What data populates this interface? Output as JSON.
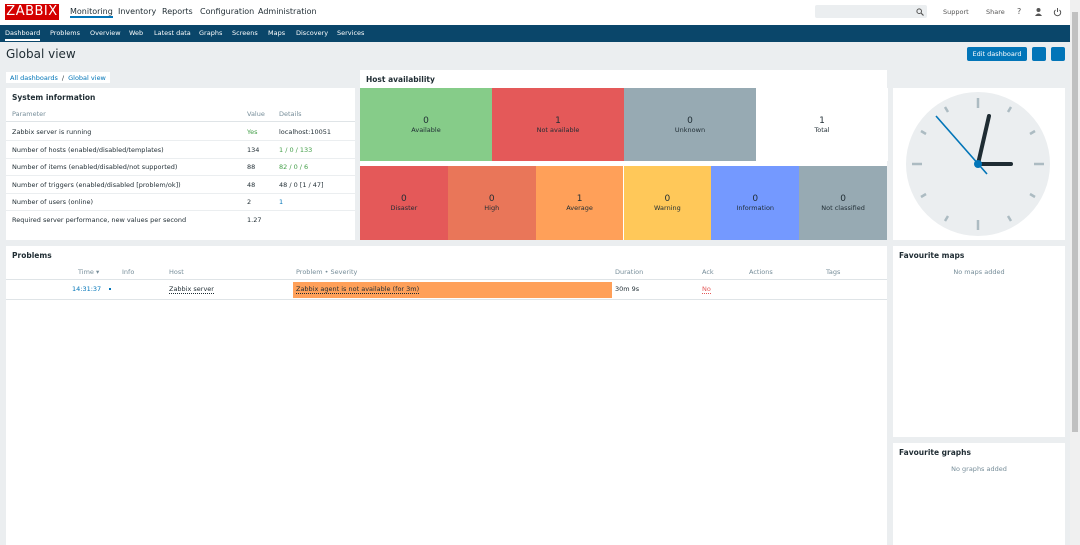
{
  "header": {
    "logo": "ZABBIX",
    "menu": [
      "Monitoring",
      "Inventory",
      "Reports",
      "Configuration",
      "Administration"
    ],
    "support": "Support",
    "share": "Share",
    "help": "?"
  },
  "nav": [
    "Dashboard",
    "Problems",
    "Overview",
    "Web",
    "Latest data",
    "Graphs",
    "Screens",
    "Maps",
    "Discovery",
    "Services"
  ],
  "page": {
    "title": "Global view",
    "edit_button": "Edit dashboard"
  },
  "breadcrumb": {
    "items": [
      "All dashboards",
      "Global view"
    ],
    "separator": "/"
  },
  "system_information": {
    "title": "System information",
    "columns": [
      "Parameter",
      "Value",
      "Details"
    ],
    "rows": [
      [
        "Zabbix server is running",
        "Yes",
        "localhost:10051"
      ],
      [
        "Number of hosts (enabled/disabled/templates)",
        "134",
        "1 / 0 / 133"
      ],
      [
        "Number of items (enabled/disabled/not supported)",
        "88",
        "82 / 0 / 6"
      ],
      [
        "Number of triggers (enabled/disabled [problem/ok])",
        "48",
        "48 / 0 [1 / 47]"
      ],
      [
        "Number of users (online)",
        "2",
        "1"
      ],
      [
        "Required server performance, new values per second",
        "1.27"
      ]
    ]
  },
  "host_availability": {
    "title": "Host availability",
    "hosts": [
      {
        "label": "Available",
        "count": 0,
        "color": "#86cc89"
      },
      {
        "label": "Not available",
        "count": 1,
        "color": "#e45959"
      },
      {
        "label": "Unknown",
        "count": 0,
        "color": "#97aab3"
      },
      {
        "label": "Total",
        "count": 1,
        "color": "#ffffff"
      }
    ],
    "severities": [
      {
        "label": "Disaster",
        "count": 0,
        "color": "#e45959"
      },
      {
        "label": "High",
        "count": 0,
        "color": "#e97659"
      },
      {
        "label": "Average",
        "count": 1,
        "color": "#ffa059"
      },
      {
        "label": "Warning",
        "count": 0,
        "color": "#ffc859"
      },
      {
        "label": "Information",
        "count": 0,
        "color": "#7499ff"
      },
      {
        "label": "Not classified",
        "count": 0,
        "color": "#97aab3"
      }
    ]
  },
  "problems": {
    "title": "Problems",
    "columns": [
      "Time ▾",
      "Info",
      "Host",
      "Problem • Severity",
      "Duration",
      "Ack",
      "Actions",
      "Tags"
    ],
    "rows": [
      {
        "time": "14:31:37",
        "host": "Zabbix server",
        "problem": "Zabbix agent is not available (for 3m)",
        "duration": "30m 9s",
        "ack": "No",
        "color": "#ffa059"
      }
    ]
  },
  "favourite_maps": {
    "title": "Favourite maps",
    "empty": "No maps added"
  },
  "favourite_graphs": {
    "title": "Favourite graphs",
    "empty": "No graphs added"
  }
}
